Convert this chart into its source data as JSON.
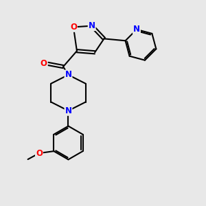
{
  "bg_color": "#e8e8e8",
  "bond_color": "#000000",
  "bond_width": 1.5,
  "atom_colors": {
    "N": "#0000ff",
    "O": "#ff0000",
    "C": "#000000"
  },
  "font_size_atoms": 8.5
}
